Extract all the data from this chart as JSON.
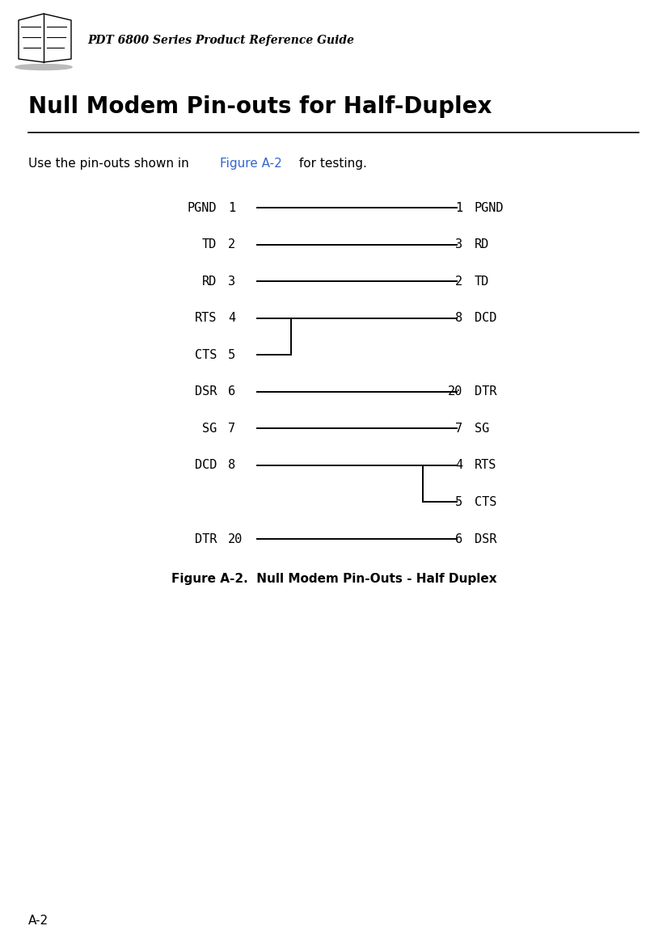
{
  "page_title": "PDT 6800 Series Product Reference Guide",
  "section_title": "Null Modem Pin-outs for Half-Duplex",
  "intro_text_plain": "Use the pin-outs shown in ",
  "intro_link": "Figure A-2",
  "intro_text_after": " for testing.",
  "figure_caption": "Figure A-2.  Null Modem Pin-Outs - Half Duplex",
  "page_label": "A-2",
  "background_color": "#ffffff",
  "line_color": "#000000",
  "link_color": "#3366cc",
  "text_color": "#000000",
  "left_pins": [
    {
      "label": "PGND",
      "num": "1",
      "row": 0
    },
    {
      "label": "TD",
      "num": "2",
      "row": 1
    },
    {
      "label": "RD",
      "num": "3",
      "row": 2
    },
    {
      "label": "RTS",
      "num": "4",
      "row": 3
    },
    {
      "label": "CTS",
      "num": "5",
      "row": 4
    },
    {
      "label": "DSR",
      "num": "6",
      "row": 5
    },
    {
      "label": "SG",
      "num": "7",
      "row": 6
    },
    {
      "label": "DCD",
      "num": "8",
      "row": 7
    },
    {
      "label": "DTR",
      "num": "20",
      "row": 9
    }
  ],
  "right_pins": [
    {
      "label": "PGND",
      "num": "1",
      "row": 0
    },
    {
      "label": "RD",
      "num": "3",
      "row": 1
    },
    {
      "label": "TD",
      "num": "2",
      "row": 2
    },
    {
      "label": "DCD",
      "num": "8",
      "row": 3
    },
    {
      "label": "DTR",
      "num": "20",
      "row": 5
    },
    {
      "label": "SG",
      "num": "7",
      "row": 6
    },
    {
      "label": "RTS",
      "num": "4",
      "row": 7
    },
    {
      "label": "CTS",
      "num": "5",
      "row": 8
    },
    {
      "label": "DSR",
      "num": "6",
      "row": 9
    }
  ],
  "straight_connections": [
    0,
    1,
    2,
    5,
    6,
    9
  ],
  "lw": 1.4,
  "font_size_label": 11,
  "font_size_pin": 11,
  "font_size_title": 10,
  "font_size_section": 20,
  "font_size_intro": 11,
  "font_size_caption": 11,
  "font_size_page": 11
}
